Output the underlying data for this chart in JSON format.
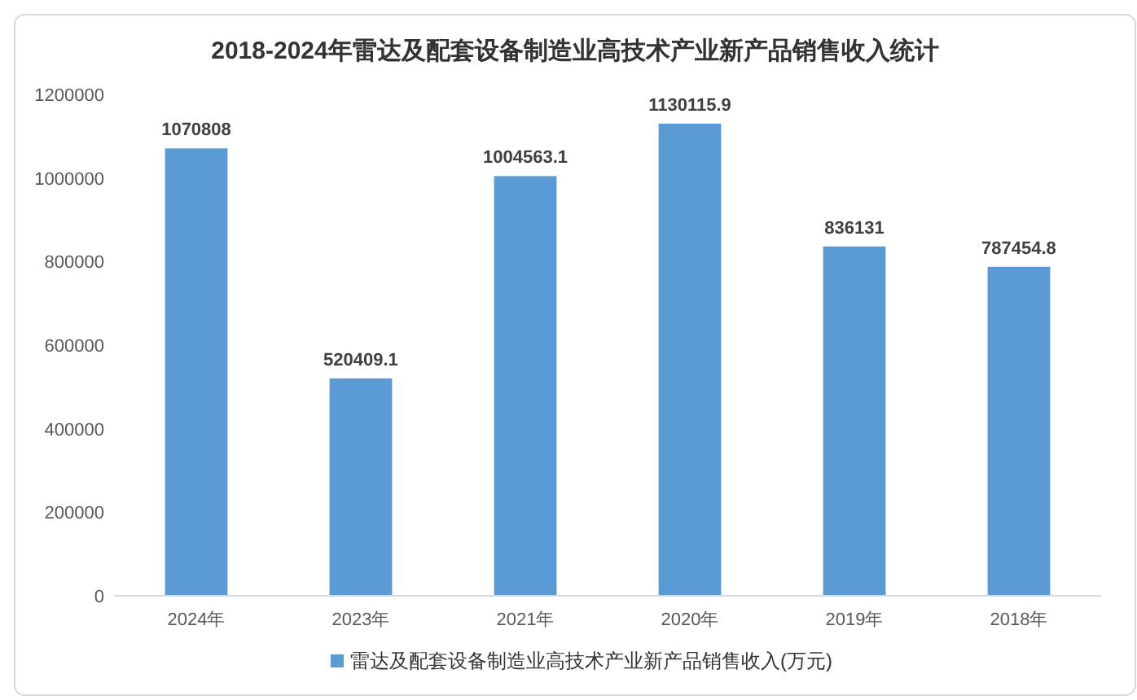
{
  "chart_data": {
    "type": "bar",
    "title": "2018-2024年雷达及配套设备制造业高技术产业新产品销售收入统计",
    "categories": [
      "2024年",
      "2023年",
      "2021年",
      "2020年",
      "2019年",
      "2018年"
    ],
    "series": [
      {
        "name": "雷达及配套设备制造业高技术产业新产品销售收入(万元)",
        "color": "#5b9bd5",
        "values": [
          1070808,
          520409.1,
          1004563.1,
          1130115.9,
          836131,
          787454.8
        ]
      }
    ],
    "ylim": [
      0,
      1200000
    ],
    "yticks": [
      0,
      200000,
      400000,
      600000,
      800000,
      1000000,
      1200000
    ],
    "grid": false,
    "legend": "bottom",
    "data_labels": true
  }
}
